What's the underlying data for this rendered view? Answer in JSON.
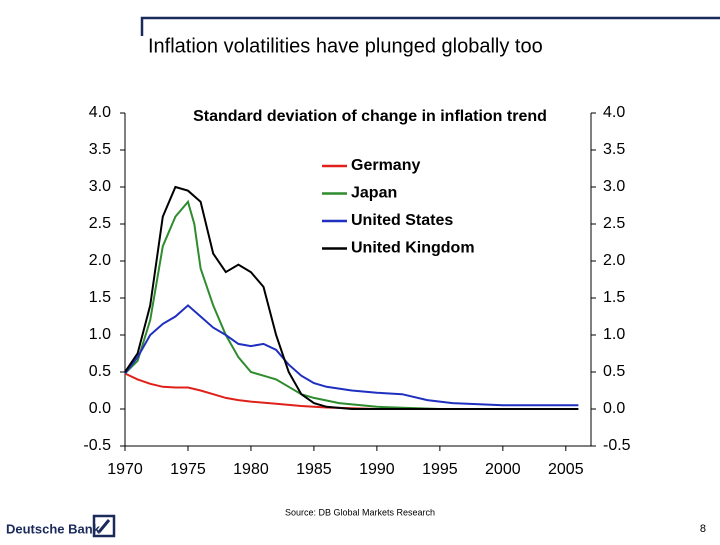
{
  "slide": {
    "source": "Source: DB Global Markets Research",
    "company": "Deutsche Bank",
    "page": "8"
  },
  "chart_data": {
    "type": "line",
    "title": "Inflation volatilities have plunged globally too",
    "subtitle": "Standard deviation of change in inflation trend",
    "xlim": [
      1970,
      2007
    ],
    "xticks": [
      1970,
      1975,
      1980,
      1985,
      1990,
      1995,
      2000,
      2005
    ],
    "ylim": [
      -0.5,
      4
    ],
    "yticks": [
      {
        "value": -0.5,
        "label": "-0.5"
      },
      {
        "value": 0,
        "label": "0.0"
      },
      {
        "value": 0.5,
        "label": "0.5"
      },
      {
        "value": 1,
        "label": "1.0"
      },
      {
        "value": 1.5,
        "label": "1.5"
      },
      {
        "value": 2,
        "label": "2.0"
      },
      {
        "value": 2.5,
        "label": "2.5"
      },
      {
        "value": 3,
        "label": "3.0"
      },
      {
        "value": 3.5,
        "label": "3.5"
      },
      {
        "value": 4,
        "label": "4.0"
      }
    ],
    "series": [
      {
        "name": "Germany",
        "color": "#e0201a",
        "x": [
          1970,
          1971,
          1972,
          1973,
          1974,
          1975,
          1976,
          1977,
          1978,
          1979,
          1980,
          1982,
          1984,
          1986,
          1988,
          1990,
          1995
        ],
        "values": [
          0.48,
          0.4,
          0.34,
          0.3,
          0.29,
          0.29,
          0.25,
          0.2,
          0.15,
          0.12,
          0.1,
          0.07,
          0.04,
          0.02,
          0.01,
          0.0,
          0.0
        ]
      },
      {
        "name": "Japan",
        "color": "#2e8b2e",
        "x": [
          1970,
          1971,
          1972,
          1973,
          1974,
          1975,
          1975.5,
          1976,
          1977,
          1978,
          1979,
          1980,
          1981,
          1982,
          1983,
          1984,
          1985,
          1987,
          1990,
          1995
        ],
        "values": [
          0.48,
          0.65,
          1.2,
          2.2,
          2.6,
          2.8,
          2.5,
          1.9,
          1.4,
          1.0,
          0.7,
          0.5,
          0.45,
          0.4,
          0.3,
          0.2,
          0.15,
          0.08,
          0.03,
          0.0
        ]
      },
      {
        "name": "United States",
        "color": "#1f2fbf",
        "x": [
          1970,
          1971,
          1972,
          1973,
          1974,
          1975,
          1976,
          1977,
          1978,
          1979,
          1980,
          1981,
          1982,
          1983,
          1984,
          1985,
          1986,
          1988,
          1990,
          1992,
          1994,
          1996,
          2000,
          2006
        ],
        "values": [
          0.48,
          0.7,
          1.0,
          1.15,
          1.25,
          1.4,
          1.25,
          1.1,
          1.0,
          0.88,
          0.85,
          0.88,
          0.8,
          0.6,
          0.45,
          0.35,
          0.3,
          0.25,
          0.22,
          0.2,
          0.12,
          0.08,
          0.05,
          0.05
        ]
      },
      {
        "name": "United Kingdom",
        "color": "#000000",
        "x": [
          1970,
          1971,
          1972,
          1973,
          1974,
          1975,
          1976,
          1977,
          1978,
          1979,
          1980,
          1981,
          1982,
          1983,
          1984,
          1985,
          1986,
          1988,
          1995,
          2006
        ],
        "values": [
          0.5,
          0.75,
          1.4,
          2.6,
          3.0,
          2.95,
          2.8,
          2.1,
          1.85,
          1.95,
          1.85,
          1.65,
          1.0,
          0.5,
          0.2,
          0.08,
          0.03,
          0.0,
          0.0,
          0.0
        ]
      }
    ]
  }
}
